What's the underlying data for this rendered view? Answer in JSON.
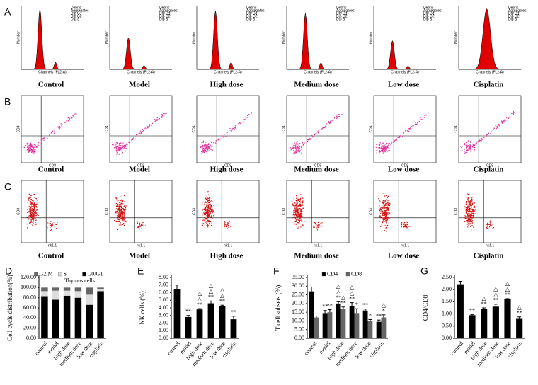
{
  "rows": [
    {
      "label": "A",
      "x_axis": "Channels (FL2-A)",
      "y_axis": "Number",
      "legend": [
        "Debris",
        "Aggregates",
        "Dip G1",
        "Dip G2",
        "Dip S"
      ]
    },
    {
      "label": "B",
      "x_axis": "CD8",
      "y_axis": "CD4"
    },
    {
      "label": "C",
      "x_axis": "nk1.1",
      "y_axis": "CD3"
    }
  ],
  "groups": [
    "Control",
    "Model",
    "High dose",
    "Medium  dose",
    "Low dose",
    "Cisplatin"
  ],
  "chart_data": [
    {
      "type": "stacked_bar",
      "panel": "D",
      "ylabel": "Cell cycle distribution(%)",
      "annotation": "Thymus cells",
      "categories": [
        "control",
        "model",
        "high dose",
        "medium dose",
        "low dose",
        "cisplatin"
      ],
      "series": [
        {
          "name": "G2/M",
          "color": "#666666",
          "values": [
            7,
            6,
            6,
            7,
            14,
            3
          ]
        },
        {
          "name": "S",
          "color": "#dddddd",
          "values": [
            10,
            18,
            10,
            13,
            20,
            4
          ]
        },
        {
          "name": "G0/G1",
          "color": "#000000",
          "values": [
            83,
            76,
            84,
            80,
            66,
            93
          ]
        }
      ],
      "ylim": [
        0,
        120
      ],
      "yticks": [
        {
          "value": 0,
          "label": "0.00"
        },
        {
          "value": 20,
          "label": "20.00"
        },
        {
          "value": 40,
          "label": "40.00"
        },
        {
          "value": 60,
          "label": "60.00"
        },
        {
          "value": 80,
          "label": "80.00"
        },
        {
          "value": 100,
          "label": "100.00"
        },
        {
          "value": 120,
          "label": "120.00"
        }
      ]
    },
    {
      "type": "bar",
      "panel": "E",
      "ylabel": "NK cells (%)",
      "categories": [
        "control",
        "model",
        "high dose",
        "medium dose",
        "low dose",
        "cisplatin"
      ],
      "series": [
        {
          "color": "#000000",
          "values": [
            6.5,
            2.8,
            3.8,
            4.6,
            4.25,
            2.5
          ],
          "errors": [
            0.5,
            0.2,
            0.1,
            0.3,
            0.1,
            0.4
          ],
          "annotations": [
            [],
            [
              "**"
            ],
            [
              "△",
              "△",
              "**"
            ],
            [
              "△",
              "△",
              "**"
            ],
            [
              "△",
              "△",
              "**"
            ],
            [
              "**"
            ]
          ]
        }
      ],
      "ylim": [
        0,
        8
      ],
      "yticks": [
        {
          "value": 0,
          "label": "0.00"
        },
        {
          "value": 1,
          "label": "1.00"
        },
        {
          "value": 2,
          "label": "2.00"
        },
        {
          "value": 3,
          "label": "3.00"
        },
        {
          "value": 4,
          "label": "4.00"
        },
        {
          "value": 5,
          "label": "5.00"
        },
        {
          "value": 6,
          "label": "6.00"
        },
        {
          "value": 7,
          "label": "7.00"
        },
        {
          "value": 8,
          "label": "8.00"
        }
      ]
    },
    {
      "type": "bar",
      "panel": "F",
      "ylabel": "T cell subsets (%)",
      "categories": [
        "control",
        "model",
        "high dose",
        "medium dose",
        "low dose",
        "cisplatin"
      ],
      "series": [
        {
          "name": "CD4",
          "color": "#000000",
          "values": [
            27,
            14.5,
            20,
            18.5,
            16,
            9.5
          ],
          "errors": [
            2.5,
            1.5,
            1,
            2,
            0.8,
            1
          ],
          "annotations": [
            [],
            [
              "**"
            ],
            [
              "△",
              "△",
              "**"
            ],
            [
              "△",
              "△",
              "**"
            ],
            [
              "**"
            ],
            [
              "**"
            ]
          ]
        },
        {
          "name": "CD8",
          "color": "#666666",
          "values": [
            12,
            15,
            17,
            14.5,
            10,
            12
          ],
          "errors": [
            0.8,
            1.5,
            1,
            2.5,
            0.8,
            1.5
          ],
          "annotations": [
            [],
            [
              "**"
            ],
            [
              "△",
              "**"
            ],
            [
              "*"
            ],
            [
              "*"
            ],
            [
              "△",
              "*"
            ]
          ]
        }
      ],
      "ylim": [
        0,
        35
      ],
      "yticks": [
        {
          "value": 0,
          "label": "0.00"
        },
        {
          "value": 5,
          "label": "5.00"
        },
        {
          "value": 10,
          "label": "10.00"
        },
        {
          "value": 15,
          "label": "15.00"
        },
        {
          "value": 20,
          "label": "20.00"
        },
        {
          "value": 25,
          "label": "25.00"
        },
        {
          "value": 30,
          "label": "30.00"
        },
        {
          "value": 35,
          "label": "35.00"
        }
      ]
    },
    {
      "type": "bar",
      "panel": "G",
      "ylabel": "CD4/CD8",
      "categories": [
        "control",
        "model",
        "high dose",
        "medium dose",
        "low dose",
        "cisplatin"
      ],
      "series": [
        {
          "color": "#000000",
          "values": [
            2.22,
            0.95,
            1.2,
            1.3,
            1.6,
            0.8
          ],
          "errors": [
            0.12,
            0.03,
            0.05,
            0.1,
            0.03,
            0.08
          ],
          "annotations": [
            [],
            [
              "**"
            ],
            [
              "△",
              "**"
            ],
            [
              "△",
              "△",
              "**"
            ],
            [
              "△",
              "△",
              "**"
            ],
            [
              "△",
              "**"
            ]
          ]
        }
      ],
      "ylim": [
        0,
        2.5
      ],
      "yticks": [
        {
          "value": 0,
          "label": "0.00"
        },
        {
          "value": 0.5,
          "label": "0.50"
        },
        {
          "value": 1,
          "label": "1.00"
        },
        {
          "value": 1.5,
          "label": "1.50"
        },
        {
          "value": 2,
          "label": "2.00"
        },
        {
          "value": 2.5,
          "label": "2.50"
        }
      ]
    }
  ]
}
